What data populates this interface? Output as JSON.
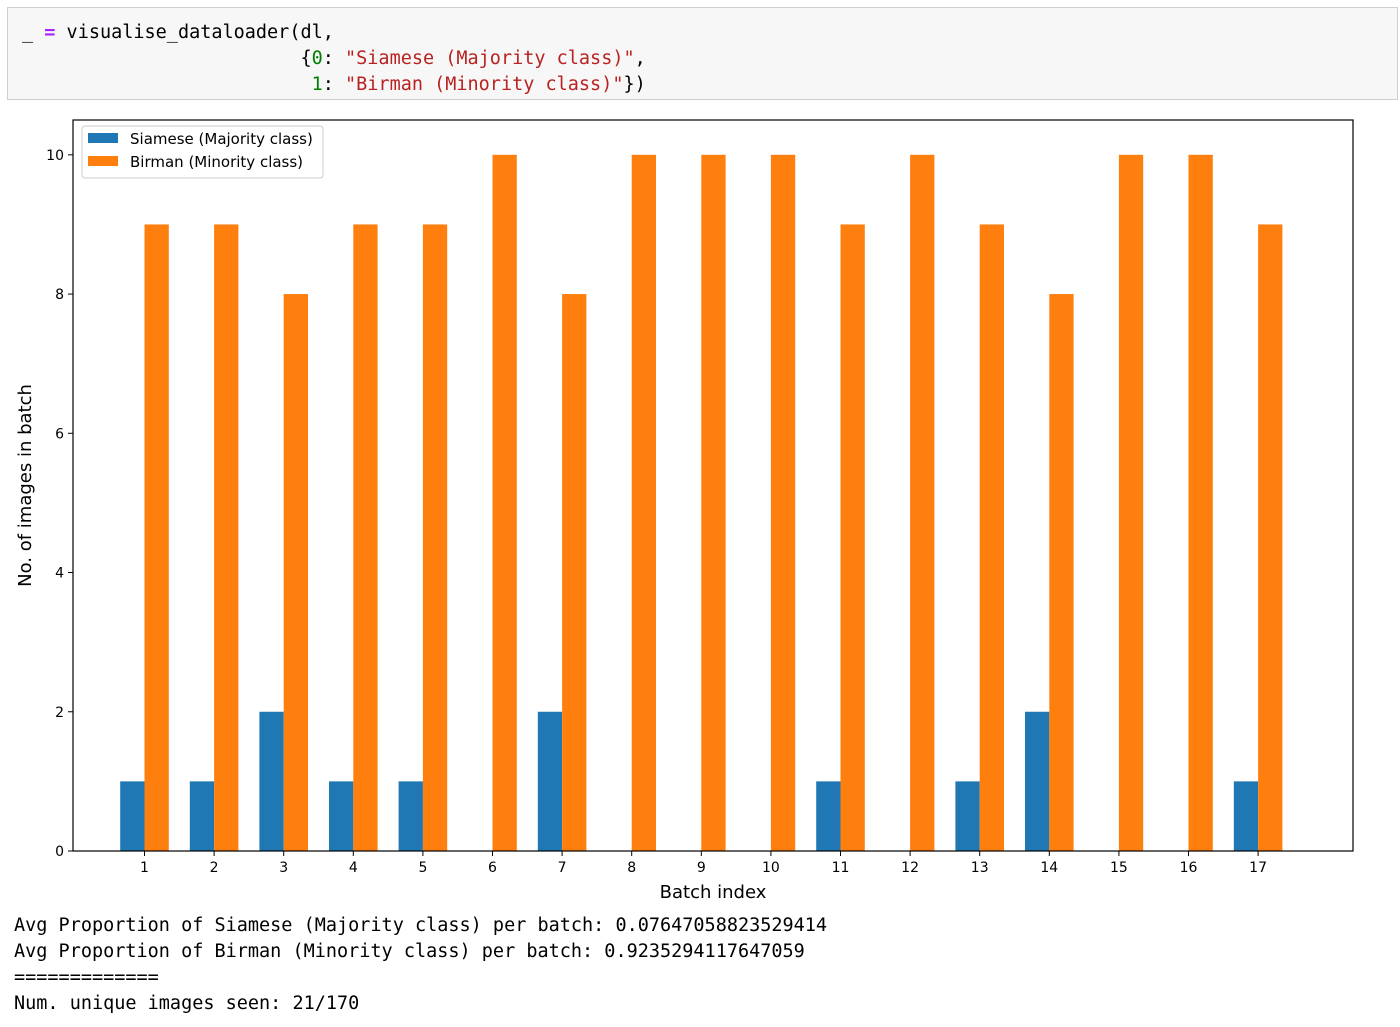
{
  "code_cell": {
    "line1_prefix": "_ ",
    "line1_op": "=",
    "line1_rest": " visualise_dataloader(dl,",
    "line2_open": "{",
    "line2_key": "0",
    "line2_colon": ": ",
    "line2_value": "\"Siamese (Majority class)\"",
    "line2_end": ",",
    "line3_key": "1",
    "line3_colon": ": ",
    "line3_value": "\"Birman (Minority class)\"",
    "line3_end": "})"
  },
  "chart_data": {
    "type": "bar",
    "xlabel": "Batch index",
    "ylabel": "No. of images in batch",
    "categories": [
      "1",
      "2",
      "3",
      "4",
      "5",
      "6",
      "7",
      "8",
      "9",
      "10",
      "11",
      "12",
      "13",
      "14",
      "15",
      "16",
      "17"
    ],
    "series": [
      {
        "name": "Siamese (Majority class)",
        "color": "#1f77b4",
        "values": [
          1,
          1,
          2,
          1,
          1,
          0,
          2,
          0,
          0,
          0,
          1,
          0,
          1,
          2,
          0,
          0,
          1
        ]
      },
      {
        "name": "Birman (Minority class)",
        "color": "#ff7f0e",
        "values": [
          9,
          9,
          8,
          9,
          9,
          10,
          8,
          10,
          10,
          10,
          9,
          10,
          9,
          8,
          10,
          10,
          9
        ]
      }
    ],
    "ylim": [
      0,
      10.5
    ],
    "yticks": [
      "0",
      "2",
      "4",
      "6",
      "8",
      "10"
    ],
    "legend_position": "top-left",
    "grid": false
  },
  "output": {
    "line1": "Avg Proportion of Siamese (Majority class) per batch: 0.07647058823529414",
    "line2": "Avg Proportion of Birman (Minority class) per batch: 0.9235294117647059",
    "separator": "=============",
    "line3": "Num. unique images seen: 21/170"
  }
}
